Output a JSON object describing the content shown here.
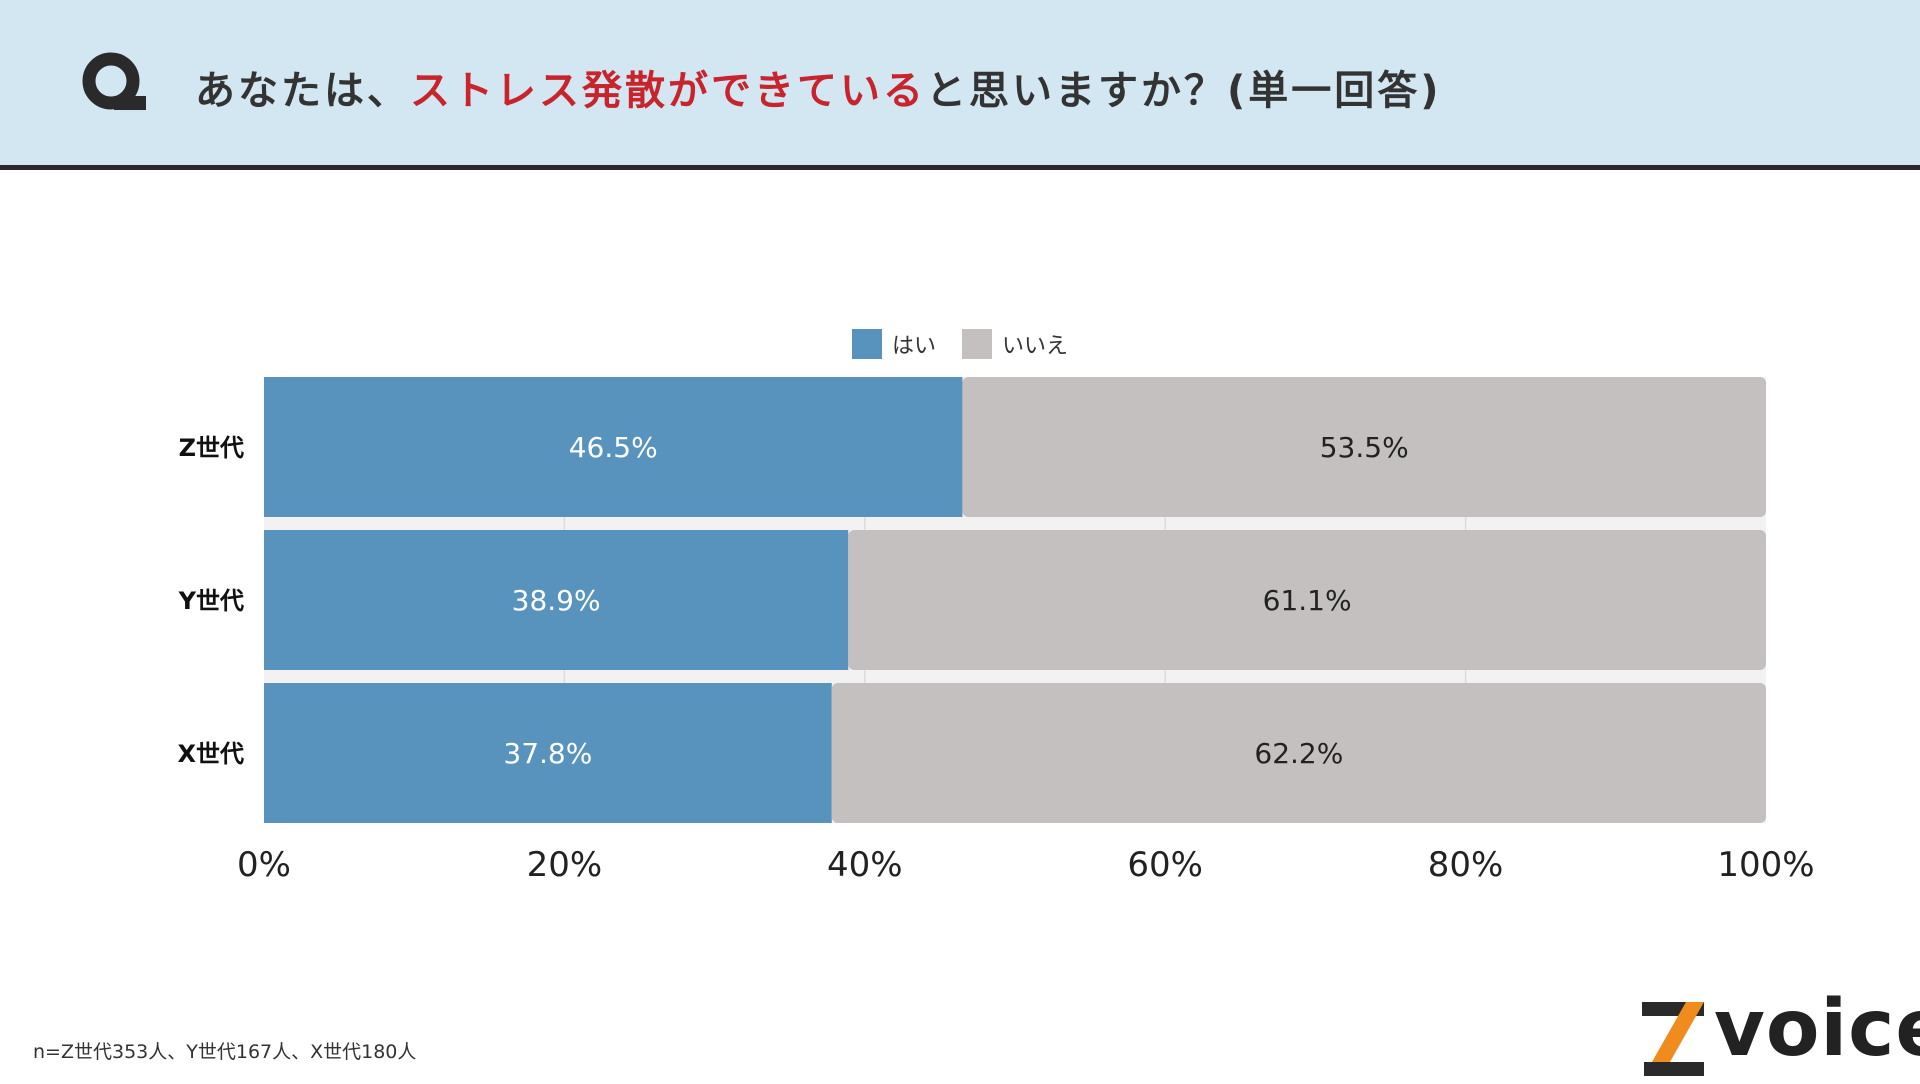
{
  "header": {
    "question_pre": "あなたは、",
    "question_highlight": "ストレス発散ができている",
    "question_post": "と思いますか？(単一回答)"
  },
  "footnote": "n=Z世代353人、Y世代167人、X世代180人",
  "logo": {
    "text": "voice",
    "mark": "Z"
  },
  "colors": {
    "yes": "#5893bd",
    "no": "#c4c0bf",
    "accent": "#c8242c",
    "header_bg": "#d3e7f3"
  },
  "chart_data": {
    "type": "bar",
    "orientation": "horizontal",
    "stacked": true,
    "categories": [
      "Z世代",
      "Y世代",
      "X世代"
    ],
    "series": [
      {
        "name": "はい",
        "values": [
          46.5,
          38.9,
          37.8
        ],
        "labels": [
          "46.5%",
          "38.9%",
          "37.8%"
        ],
        "color": "#5893bd"
      },
      {
        "name": "いいえ",
        "values": [
          53.5,
          61.1,
          62.2
        ],
        "labels": [
          "53.5%",
          "61.1%",
          "62.2%"
        ],
        "color": "#c4c0bf"
      }
    ],
    "xlim": [
      0,
      100
    ],
    "xticks": [
      "0%",
      "20%",
      "40%",
      "60%",
      "80%",
      "100%"
    ],
    "grid": true,
    "legend": "top-center"
  }
}
